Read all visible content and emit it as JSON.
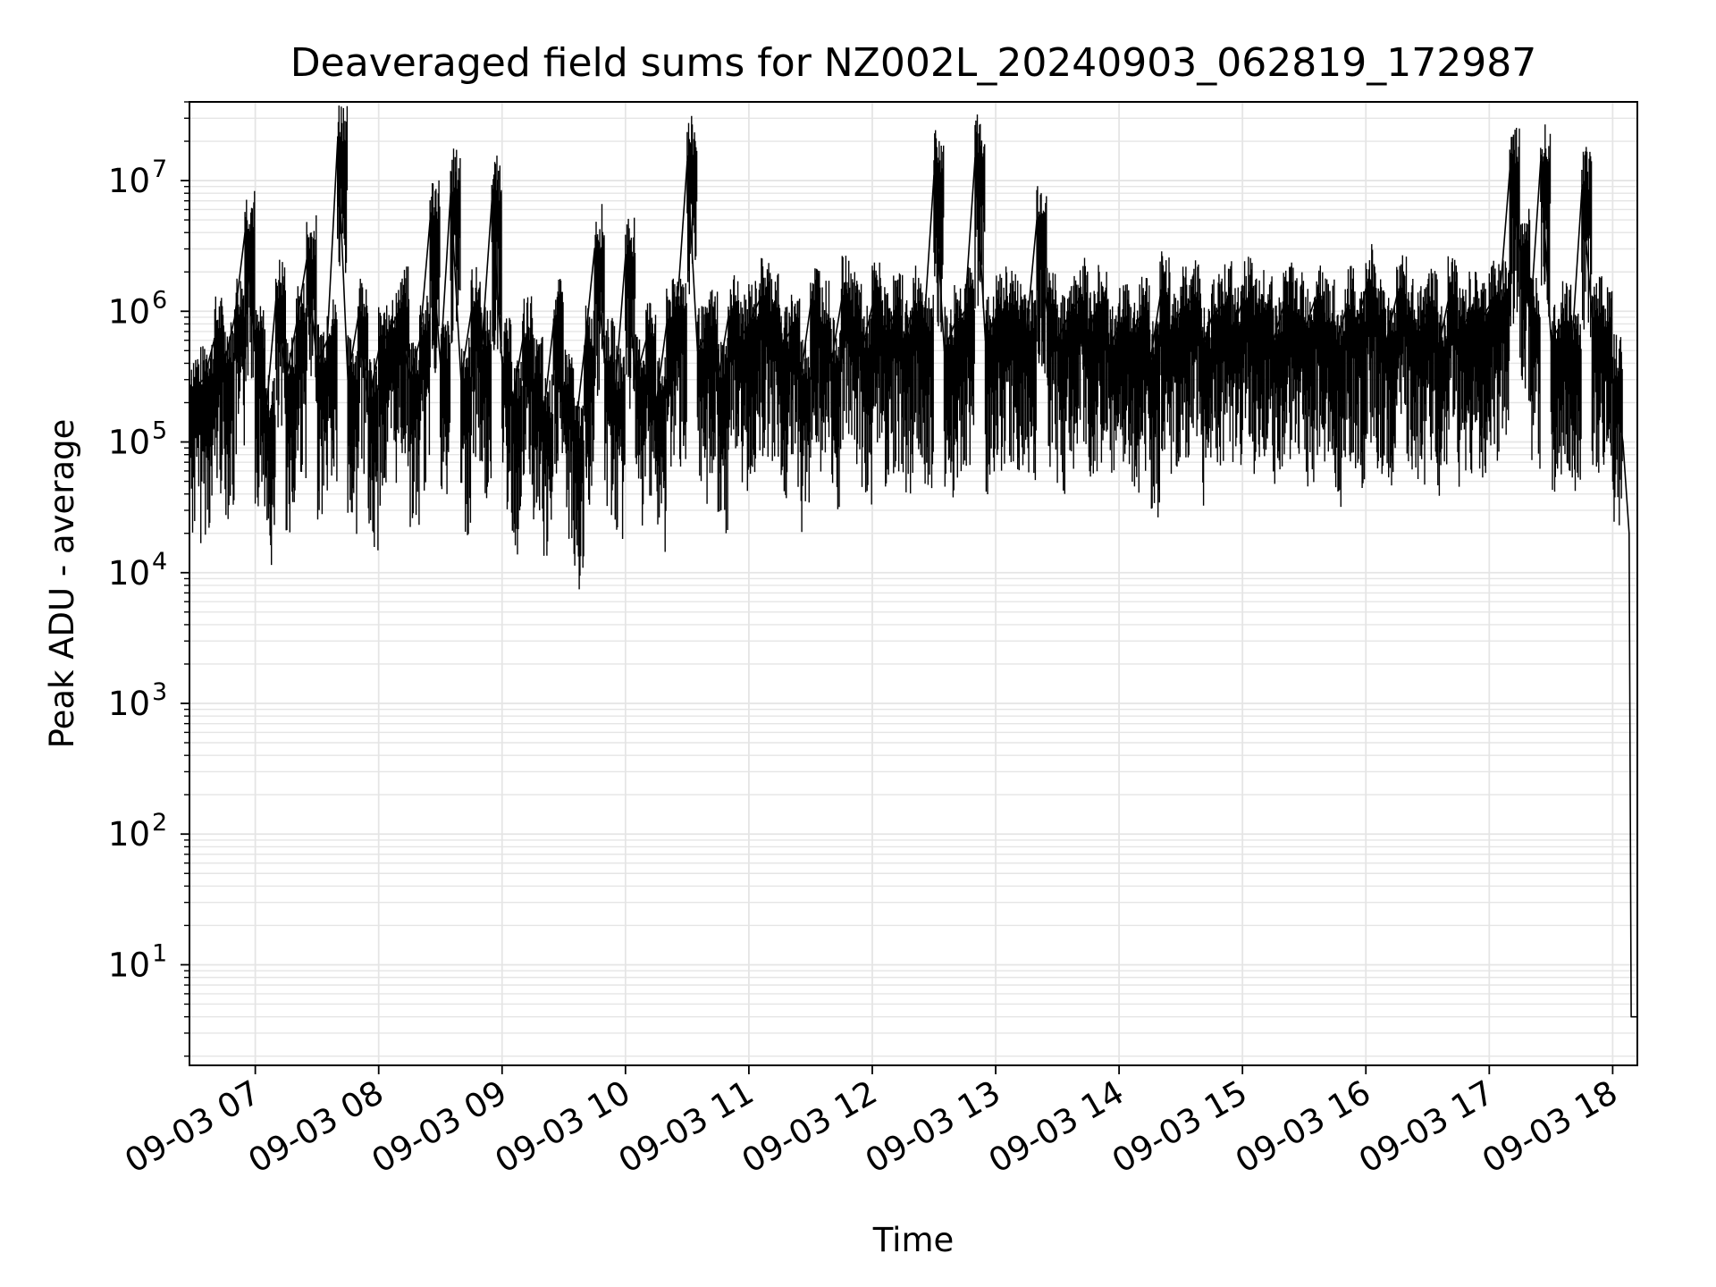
{
  "chart_data": {
    "type": "line",
    "title": "Deaveraged field sums for NZ002L_20240903_062819_172987",
    "xlabel": "Time",
    "ylabel": "Peak ADU - average",
    "yscale": "log",
    "ylim": [
      1.7,
      40000000
    ],
    "xlim": [
      "09-03 06:28",
      "09-03 18:12"
    ],
    "grid": true,
    "line_color": "#000000",
    "grid_color": "#e5e5e5",
    "x_ticks": [
      "09-03 07",
      "09-03 08",
      "09-03 09",
      "09-03 10",
      "09-03 11",
      "09-03 12",
      "09-03 13",
      "09-03 14",
      "09-03 15",
      "09-03 16",
      "09-03 17",
      "09-03 18"
    ],
    "y_ticks": [
      {
        "base": "10",
        "exp": "1"
      },
      {
        "base": "10",
        "exp": "2"
      },
      {
        "base": "10",
        "exp": "3"
      },
      {
        "base": "10",
        "exp": "4"
      },
      {
        "base": "10",
        "exp": "5"
      },
      {
        "base": "10",
        "exp": "6"
      },
      {
        "base": "10",
        "exp": "7"
      }
    ],
    "series": [
      {
        "x": [
          "06:28",
          "06:35",
          "06:40",
          "06:45",
          "06:50",
          "06:55",
          "07:00",
          "07:05",
          "07:10",
          "07:15",
          "07:20",
          "07:25",
          "07:30",
          "07:35",
          "07:40",
          "07:45",
          "07:50",
          "07:55",
          "08:00",
          "08:05",
          "08:10",
          "08:15",
          "08:20",
          "08:25",
          "08:30",
          "08:35",
          "08:40",
          "08:45",
          "08:50",
          "08:55",
          "09:00",
          "09:05",
          "09:10",
          "09:15",
          "09:20",
          "09:25",
          "09:30",
          "09:35",
          "09:40",
          "09:45",
          "09:50",
          "09:55",
          "10:00",
          "10:05",
          "10:10",
          "10:15",
          "10:20",
          "10:25",
          "10:30",
          "10:35",
          "10:40",
          "10:45",
          "10:50",
          "10:55",
          "11:00",
          "11:05",
          "11:10",
          "11:15",
          "11:20",
          "11:25",
          "11:30",
          "11:35",
          "11:40",
          "11:45",
          "11:50",
          "11:55",
          "12:00",
          "12:05",
          "12:10",
          "12:15",
          "12:20",
          "12:25",
          "12:30",
          "12:35",
          "12:40",
          "12:45",
          "12:50",
          "12:55",
          "13:00",
          "13:05",
          "13:10",
          "13:15",
          "13:20",
          "13:25",
          "13:30",
          "13:35",
          "13:40",
          "13:45",
          "13:50",
          "13:55",
          "14:00",
          "14:05",
          "14:10",
          "14:15",
          "14:20",
          "14:25",
          "14:30",
          "14:35",
          "14:40",
          "14:45",
          "14:50",
          "14:55",
          "15:00",
          "15:05",
          "15:10",
          "15:15",
          "15:20",
          "15:25",
          "15:30",
          "15:35",
          "15:40",
          "15:45",
          "15:50",
          "15:55",
          "16:00",
          "16:05",
          "16:10",
          "16:15",
          "16:20",
          "16:25",
          "16:30",
          "16:35",
          "16:40",
          "16:45",
          "16:50",
          "16:55",
          "17:00",
          "17:05",
          "17:10",
          "17:15",
          "17:20",
          "17:25",
          "17:30",
          "17:35",
          "17:40",
          "17:45",
          "17:50",
          "17:55",
          "18:00",
          "18:05",
          "18:08",
          "18:09",
          "18:10",
          "18:12"
        ],
        "y": [
          250000,
          300000,
          600000,
          400000,
          900000,
          4000000,
          500000,
          150000,
          1200000,
          300000,
          800000,
          2500000,
          400000,
          600000,
          20000000,
          300000,
          900000,
          200000,
          500000,
          700000,
          1000000,
          300000,
          600000,
          5000000,
          400000,
          8000000,
          300000,
          1000000,
          500000,
          7000000,
          400000,
          200000,
          600000,
          300000,
          150000,
          800000,
          250000,
          100000,
          500000,
          3000000,
          400000,
          250000,
          2600000,
          300000,
          600000,
          200000,
          800000,
          1000000,
          14000000,
          500000,
          700000,
          300000,
          900000,
          600000,
          800000,
          1200000,
          1000000,
          500000,
          700000,
          300000,
          1100000,
          800000,
          400000,
          1200000,
          900000,
          500000,
          1100000,
          700000,
          900000,
          600000,
          1000000,
          700000,
          11000000,
          500000,
          800000,
          1000000,
          15000000,
          600000,
          900000,
          1000000,
          800000,
          700000,
          5000000,
          1000000,
          600000,
          900000,
          1200000,
          700000,
          1100000,
          500000,
          800000,
          600000,
          900000,
          400000,
          1300000,
          700000,
          1000000,
          1200000,
          500000,
          900000,
          1100000,
          700000,
          1200000,
          800000,
          1000000,
          600000,
          1100000,
          900000,
          700000,
          1200000,
          800000,
          500000,
          1000000,
          700000,
          1500000,
          900000,
          600000,
          1300000,
          800000,
          700000,
          1000000,
          500000,
          1200000,
          700000,
          900000,
          800000,
          1100000,
          1200000,
          12000000,
          3000000,
          900000,
          14000000,
          600000,
          800000,
          500000,
          8500000,
          900000,
          700000,
          300000,
          100000,
          20000,
          4,
          4,
          4
        ]
      }
    ]
  }
}
